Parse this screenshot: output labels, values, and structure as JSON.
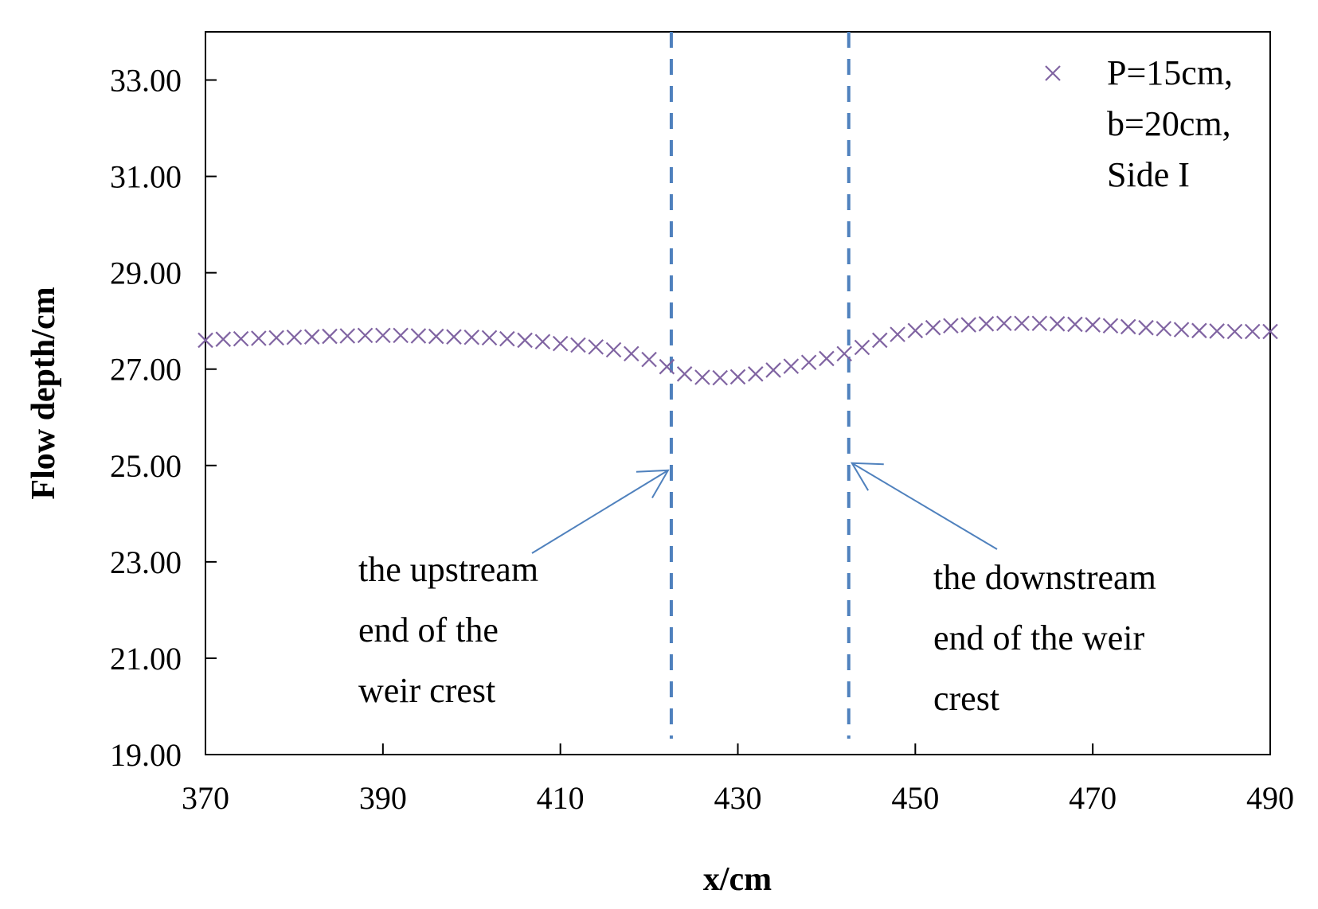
{
  "chart_data": {
    "type": "scatter",
    "title": "",
    "xlabel": "x/cm",
    "ylabel": "Flow depth/cm",
    "xlim": [
      370,
      490
    ],
    "ylim": [
      19,
      34
    ],
    "xticks": [
      "370",
      "390",
      "410",
      "430",
      "450",
      "470",
      "490"
    ],
    "yticks": [
      "19.00",
      "21.00",
      "23.00",
      "25.00",
      "27.00",
      "29.00",
      "31.00",
      "33.00"
    ],
    "grid": false,
    "legend_position": "top-right",
    "colors": {
      "series": "#8064A2",
      "reference_lines": "#4F81BD",
      "arrows": "#4F81BD"
    },
    "series": [
      {
        "name": [
          "P=15cm,",
          "b=20cm,",
          "Side I"
        ],
        "marker": "x",
        "x": [
          370,
          372,
          374,
          376,
          378,
          380,
          382,
          384,
          386,
          388,
          390,
          392,
          394,
          396,
          398,
          400,
          402,
          404,
          406,
          408,
          410,
          412,
          414,
          416,
          418,
          420,
          422,
          424,
          426,
          428,
          430,
          432,
          434,
          436,
          438,
          440,
          442,
          444,
          446,
          448,
          450,
          452,
          454,
          456,
          458,
          460,
          462,
          464,
          466,
          468,
          470,
          472,
          474,
          476,
          478,
          480,
          482,
          484,
          486,
          488,
          490
        ],
        "y": [
          27.6,
          27.62,
          27.63,
          27.64,
          27.65,
          27.66,
          27.67,
          27.68,
          27.69,
          27.7,
          27.7,
          27.7,
          27.69,
          27.68,
          27.67,
          27.66,
          27.65,
          27.63,
          27.6,
          27.57,
          27.53,
          27.5,
          27.46,
          27.4,
          27.32,
          27.2,
          27.05,
          26.9,
          26.83,
          26.82,
          26.84,
          26.9,
          26.98,
          27.06,
          27.14,
          27.22,
          27.32,
          27.45,
          27.6,
          27.72,
          27.8,
          27.86,
          27.9,
          27.92,
          27.94,
          27.95,
          27.95,
          27.95,
          27.94,
          27.93,
          27.92,
          27.9,
          27.88,
          27.86,
          27.84,
          27.82,
          27.8,
          27.79,
          27.78,
          27.78,
          27.78
        ]
      }
    ],
    "reference_lines": [
      {
        "x": 422.5,
        "style": "dashed"
      },
      {
        "x": 442.5,
        "style": "dashed"
      }
    ],
    "annotations": [
      {
        "lines": [
          "the upstream",
          "end of the",
          "weir crest"
        ],
        "points_to_x": 422.5,
        "points_to_y": 24.9
      },
      {
        "lines": [
          "the downstream",
          "end of the weir",
          "crest"
        ],
        "points_to_x": 442.5,
        "points_to_y": 25.05
      }
    ]
  }
}
